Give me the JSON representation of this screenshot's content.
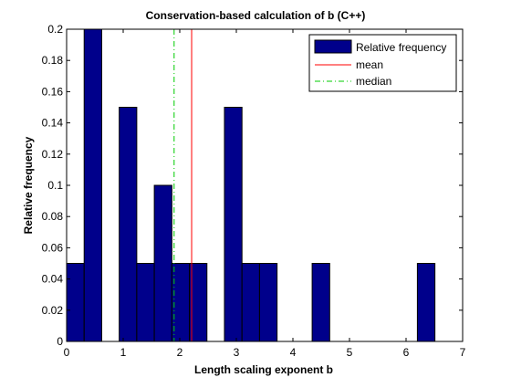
{
  "chart_data": {
    "type": "bar",
    "title": "Conservation-based calculation of b (C++)",
    "xlabel": "Length scaling exponent b",
    "ylabel": "Relative frequency",
    "xlim": [
      0,
      7
    ],
    "ylim": [
      0,
      0.2
    ],
    "xticks": [
      0,
      1,
      2,
      3,
      4,
      5,
      6,
      7
    ],
    "yticks": [
      0,
      0.02,
      0.04,
      0.06,
      0.08,
      0.1,
      0.12,
      0.14,
      0.16,
      0.18,
      0.2
    ],
    "bin_width": 0.31,
    "bins": [
      {
        "x0": 0.0,
        "value": 0.05
      },
      {
        "x0": 0.31,
        "value": 0.2
      },
      {
        "x0": 0.93,
        "value": 0.15
      },
      {
        "x0": 1.24,
        "value": 0.05
      },
      {
        "x0": 1.55,
        "value": 0.1
      },
      {
        "x0": 1.86,
        "value": 0.05
      },
      {
        "x0": 2.17,
        "value": 0.05
      },
      {
        "x0": 2.79,
        "value": 0.15
      },
      {
        "x0": 3.1,
        "value": 0.05
      },
      {
        "x0": 3.41,
        "value": 0.05
      },
      {
        "x0": 4.34,
        "value": 0.05
      },
      {
        "x0": 6.2,
        "value": 0.05
      }
    ],
    "series": [
      {
        "name": "Relative frequency",
        "color": "#00008B"
      }
    ],
    "reference_lines": [
      {
        "name": "mean",
        "x": 2.21,
        "color": "#FF0000",
        "style": "solid"
      },
      {
        "name": "median",
        "x": 1.9,
        "color": "#00CC00",
        "style": "dash-dot"
      }
    ],
    "legend": {
      "position": "top-right",
      "entries": [
        "Relative frequency",
        "mean",
        "median"
      ]
    },
    "grid": false
  }
}
